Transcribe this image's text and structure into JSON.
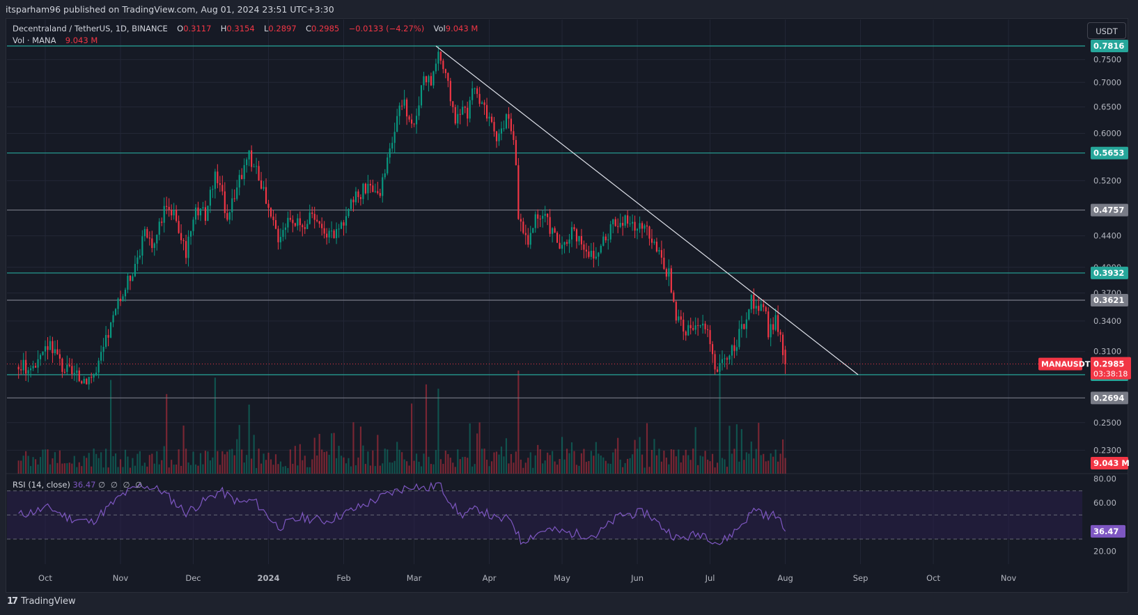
{
  "header": {
    "publisher": "itsparham96 published on TradingView.com, Aug 01, 2024 23:51 UTC+3:30"
  },
  "legend": {
    "symbol": "Decentraland / TetherUS, 1D, BINANCE",
    "o_label": "O",
    "o": "0.3117",
    "h_label": "H",
    "h": "0.3154",
    "l_label": "L",
    "l": "0.2897",
    "c_label": "C",
    "c": "0.2985",
    "chg": "−0.0133 (−4.27%)",
    "vol_label": "Vol",
    "vol": "9.043 M",
    "vol2_label": "Vol · MANA",
    "vol2": "9.043 M"
  },
  "rsi_legend": {
    "label": "RSI (14, close)",
    "value": "36.47",
    "dots": "∅ ∅ ∅ ∅"
  },
  "toolbar": {
    "currency": "USDT"
  },
  "footer": {
    "brand": "TradingView"
  },
  "colors": {
    "up": "#089981",
    "down": "#f23645",
    "hline": "#26a69a",
    "grayline": "#787b86",
    "rsi": "#7e57c2",
    "rsiband": "#2a1f4a",
    "bg": "#161a25"
  },
  "chart_data": [
    {
      "type": "candlestick",
      "title": "Decentraland / TetherUS, 1D, BINANCE",
      "x_tick_labels": [
        "Oct",
        "Nov",
        "Dec",
        "2024",
        "Feb",
        "Mar",
        "Apr",
        "May",
        "Jun",
        "Jul",
        "Aug",
        "Sep",
        "Oct",
        "Nov"
      ],
      "y_axis_labels": [
        "0.7500",
        "0.7000",
        "0.6500",
        "0.6000",
        "0.5200",
        "0.4400",
        "0.4000",
        "0.3700",
        "0.3400",
        "0.3100",
        "0.2500",
        "0.2300"
      ],
      "y_range": [
        0.215,
        0.79
      ],
      "scale": "log",
      "horizontal_levels": [
        {
          "value": 0.7816,
          "label": "0.7816",
          "style": "teal"
        },
        {
          "value": 0.5653,
          "label": "0.5653",
          "style": "teal"
        },
        {
          "value": 0.4757,
          "label": "0.4757",
          "style": "gray"
        },
        {
          "value": 0.3932,
          "label": "0.3932",
          "style": "teal"
        },
        {
          "value": 0.3621,
          "label": "0.3621",
          "style": "gray"
        },
        {
          "value": 0.289,
          "label": "0.2890",
          "style": "teal"
        },
        {
          "value": 0.2694,
          "label": "0.2694",
          "style": "gray"
        }
      ],
      "current_price": {
        "value": 0.2985,
        "label": "0.2985",
        "symbol": "MANAUSDT",
        "countdown": "03:38:18"
      },
      "trendline": {
        "from": {
          "date": "2024-03-10",
          "price": 0.7816
        },
        "to": {
          "date": "2024-08-31",
          "price": 0.289
        }
      },
      "close_anchors": [
        [
          "2023-09-20",
          0.296
        ],
        [
          "2023-09-28",
          0.297
        ],
        [
          "2023-10-03",
          0.32
        ],
        [
          "2023-10-08",
          0.296
        ],
        [
          "2023-10-15",
          0.285
        ],
        [
          "2023-10-22",
          0.29
        ],
        [
          "2023-10-30",
          0.35
        ],
        [
          "2023-11-05",
          0.39
        ],
        [
          "2023-11-11",
          0.44
        ],
        [
          "2023-11-15",
          0.43
        ],
        [
          "2023-11-20",
          0.49
        ],
        [
          "2023-11-25",
          0.45
        ],
        [
          "2023-11-28",
          0.42
        ],
        [
          "2023-12-01",
          0.47
        ],
        [
          "2023-12-06",
          0.47
        ],
        [
          "2023-12-10",
          0.53
        ],
        [
          "2023-12-15",
          0.47
        ],
        [
          "2023-12-20",
          0.52
        ],
        [
          "2023-12-24",
          0.56
        ],
        [
          "2023-12-28",
          0.53
        ],
        [
          "2024-01-01",
          0.47
        ],
        [
          "2024-01-05",
          0.44
        ],
        [
          "2024-01-10",
          0.47
        ],
        [
          "2024-01-15",
          0.45
        ],
        [
          "2024-01-20",
          0.47
        ],
        [
          "2024-01-25",
          0.44
        ],
        [
          "2024-01-30",
          0.45
        ],
        [
          "2024-02-05",
          0.49
        ],
        [
          "2024-02-10",
          0.51
        ],
        [
          "2024-02-15",
          0.49
        ],
        [
          "2024-02-20",
          0.57
        ],
        [
          "2024-02-25",
          0.66
        ],
        [
          "2024-03-01",
          0.61
        ],
        [
          "2024-03-05",
          0.72
        ],
        [
          "2024-03-08",
          0.7
        ],
        [
          "2024-03-11",
          0.77
        ],
        [
          "2024-03-14",
          0.71
        ],
        [
          "2024-03-18",
          0.63
        ],
        [
          "2024-03-23",
          0.64
        ],
        [
          "2024-03-26",
          0.69
        ],
        [
          "2024-03-31",
          0.63
        ],
        [
          "2024-04-04",
          0.59
        ],
        [
          "2024-04-08",
          0.63
        ],
        [
          "2024-04-11",
          0.6
        ],
        [
          "2024-04-13",
          0.47
        ],
        [
          "2024-04-17",
          0.43
        ],
        [
          "2024-04-20",
          0.46
        ],
        [
          "2024-04-23",
          0.47
        ],
        [
          "2024-04-28",
          0.44
        ],
        [
          "2024-05-01",
          0.42
        ],
        [
          "2024-05-05",
          0.45
        ],
        [
          "2024-05-10",
          0.43
        ],
        [
          "2024-05-14",
          0.41
        ],
        [
          "2024-05-18",
          0.43
        ],
        [
          "2024-05-22",
          0.46
        ],
        [
          "2024-05-27",
          0.46
        ],
        [
          "2024-06-01",
          0.45
        ],
        [
          "2024-06-05",
          0.46
        ],
        [
          "2024-06-07",
          0.43
        ],
        [
          "2024-06-11",
          0.41
        ],
        [
          "2024-06-14",
          0.39
        ],
        [
          "2024-06-17",
          0.34
        ],
        [
          "2024-06-21",
          0.33
        ],
        [
          "2024-06-25",
          0.34
        ],
        [
          "2024-06-30",
          0.33
        ],
        [
          "2024-07-04",
          0.29
        ],
        [
          "2024-07-07",
          0.3
        ],
        [
          "2024-07-10",
          0.31
        ],
        [
          "2024-07-14",
          0.33
        ],
        [
          "2024-07-18",
          0.36
        ],
        [
          "2024-07-21",
          0.35
        ],
        [
          "2024-07-23",
          0.36
        ],
        [
          "2024-07-25",
          0.33
        ],
        [
          "2024-07-28",
          0.34
        ],
        [
          "2024-07-31",
          0.31
        ],
        [
          "2024-08-01",
          0.2985
        ]
      ]
    },
    {
      "type": "bar",
      "title": "Vol · MANA",
      "last_value": "9.043 M",
      "spike_dates": [
        "2023-10-28",
        "2023-11-20",
        "2023-12-10",
        "2023-12-24",
        "2024-02-29",
        "2024-03-06",
        "2024-03-11",
        "2024-04-13",
        "2024-07-05"
      ]
    },
    {
      "type": "line",
      "title": "RSI (14, close)",
      "y_axis_labels": [
        "80.00",
        "60.00",
        "20.00"
      ],
      "band": [
        30,
        70
      ],
      "midline": 50,
      "y_range": [
        15,
        82
      ],
      "last_value": "36.47",
      "anchors": [
        [
          "2023-09-20",
          50
        ],
        [
          "2023-10-03",
          56
        ],
        [
          "2023-10-10",
          48
        ],
        [
          "2023-10-20",
          44
        ],
        [
          "2023-11-02",
          67
        ],
        [
          "2023-11-10",
          75
        ],
        [
          "2023-11-18",
          70
        ],
        [
          "2023-11-28",
          52
        ],
        [
          "2023-12-06",
          62
        ],
        [
          "2023-12-12",
          70
        ],
        [
          "2023-12-20",
          60
        ],
        [
          "2023-12-26",
          62
        ],
        [
          "2024-01-05",
          40
        ],
        [
          "2024-01-15",
          48
        ],
        [
          "2024-01-25",
          45
        ],
        [
          "2024-02-08",
          57
        ],
        [
          "2024-02-20",
          68
        ],
        [
          "2024-03-01",
          75
        ],
        [
          "2024-03-06",
          71
        ],
        [
          "2024-03-11",
          76
        ],
        [
          "2024-03-20",
          50
        ],
        [
          "2024-03-28",
          55
        ],
        [
          "2024-04-04",
          46
        ],
        [
          "2024-04-10",
          47
        ],
        [
          "2024-04-14",
          28
        ],
        [
          "2024-04-24",
          38
        ],
        [
          "2024-05-04",
          35
        ],
        [
          "2024-05-15",
          33
        ],
        [
          "2024-05-25",
          50
        ],
        [
          "2024-06-05",
          52
        ],
        [
          "2024-06-10",
          42
        ],
        [
          "2024-06-18",
          30
        ],
        [
          "2024-06-28",
          35
        ],
        [
          "2024-07-05",
          26
        ],
        [
          "2024-07-12",
          38
        ],
        [
          "2024-07-20",
          56
        ],
        [
          "2024-07-25",
          48
        ],
        [
          "2024-07-28",
          51
        ],
        [
          "2024-08-01",
          36.47
        ]
      ]
    }
  ]
}
